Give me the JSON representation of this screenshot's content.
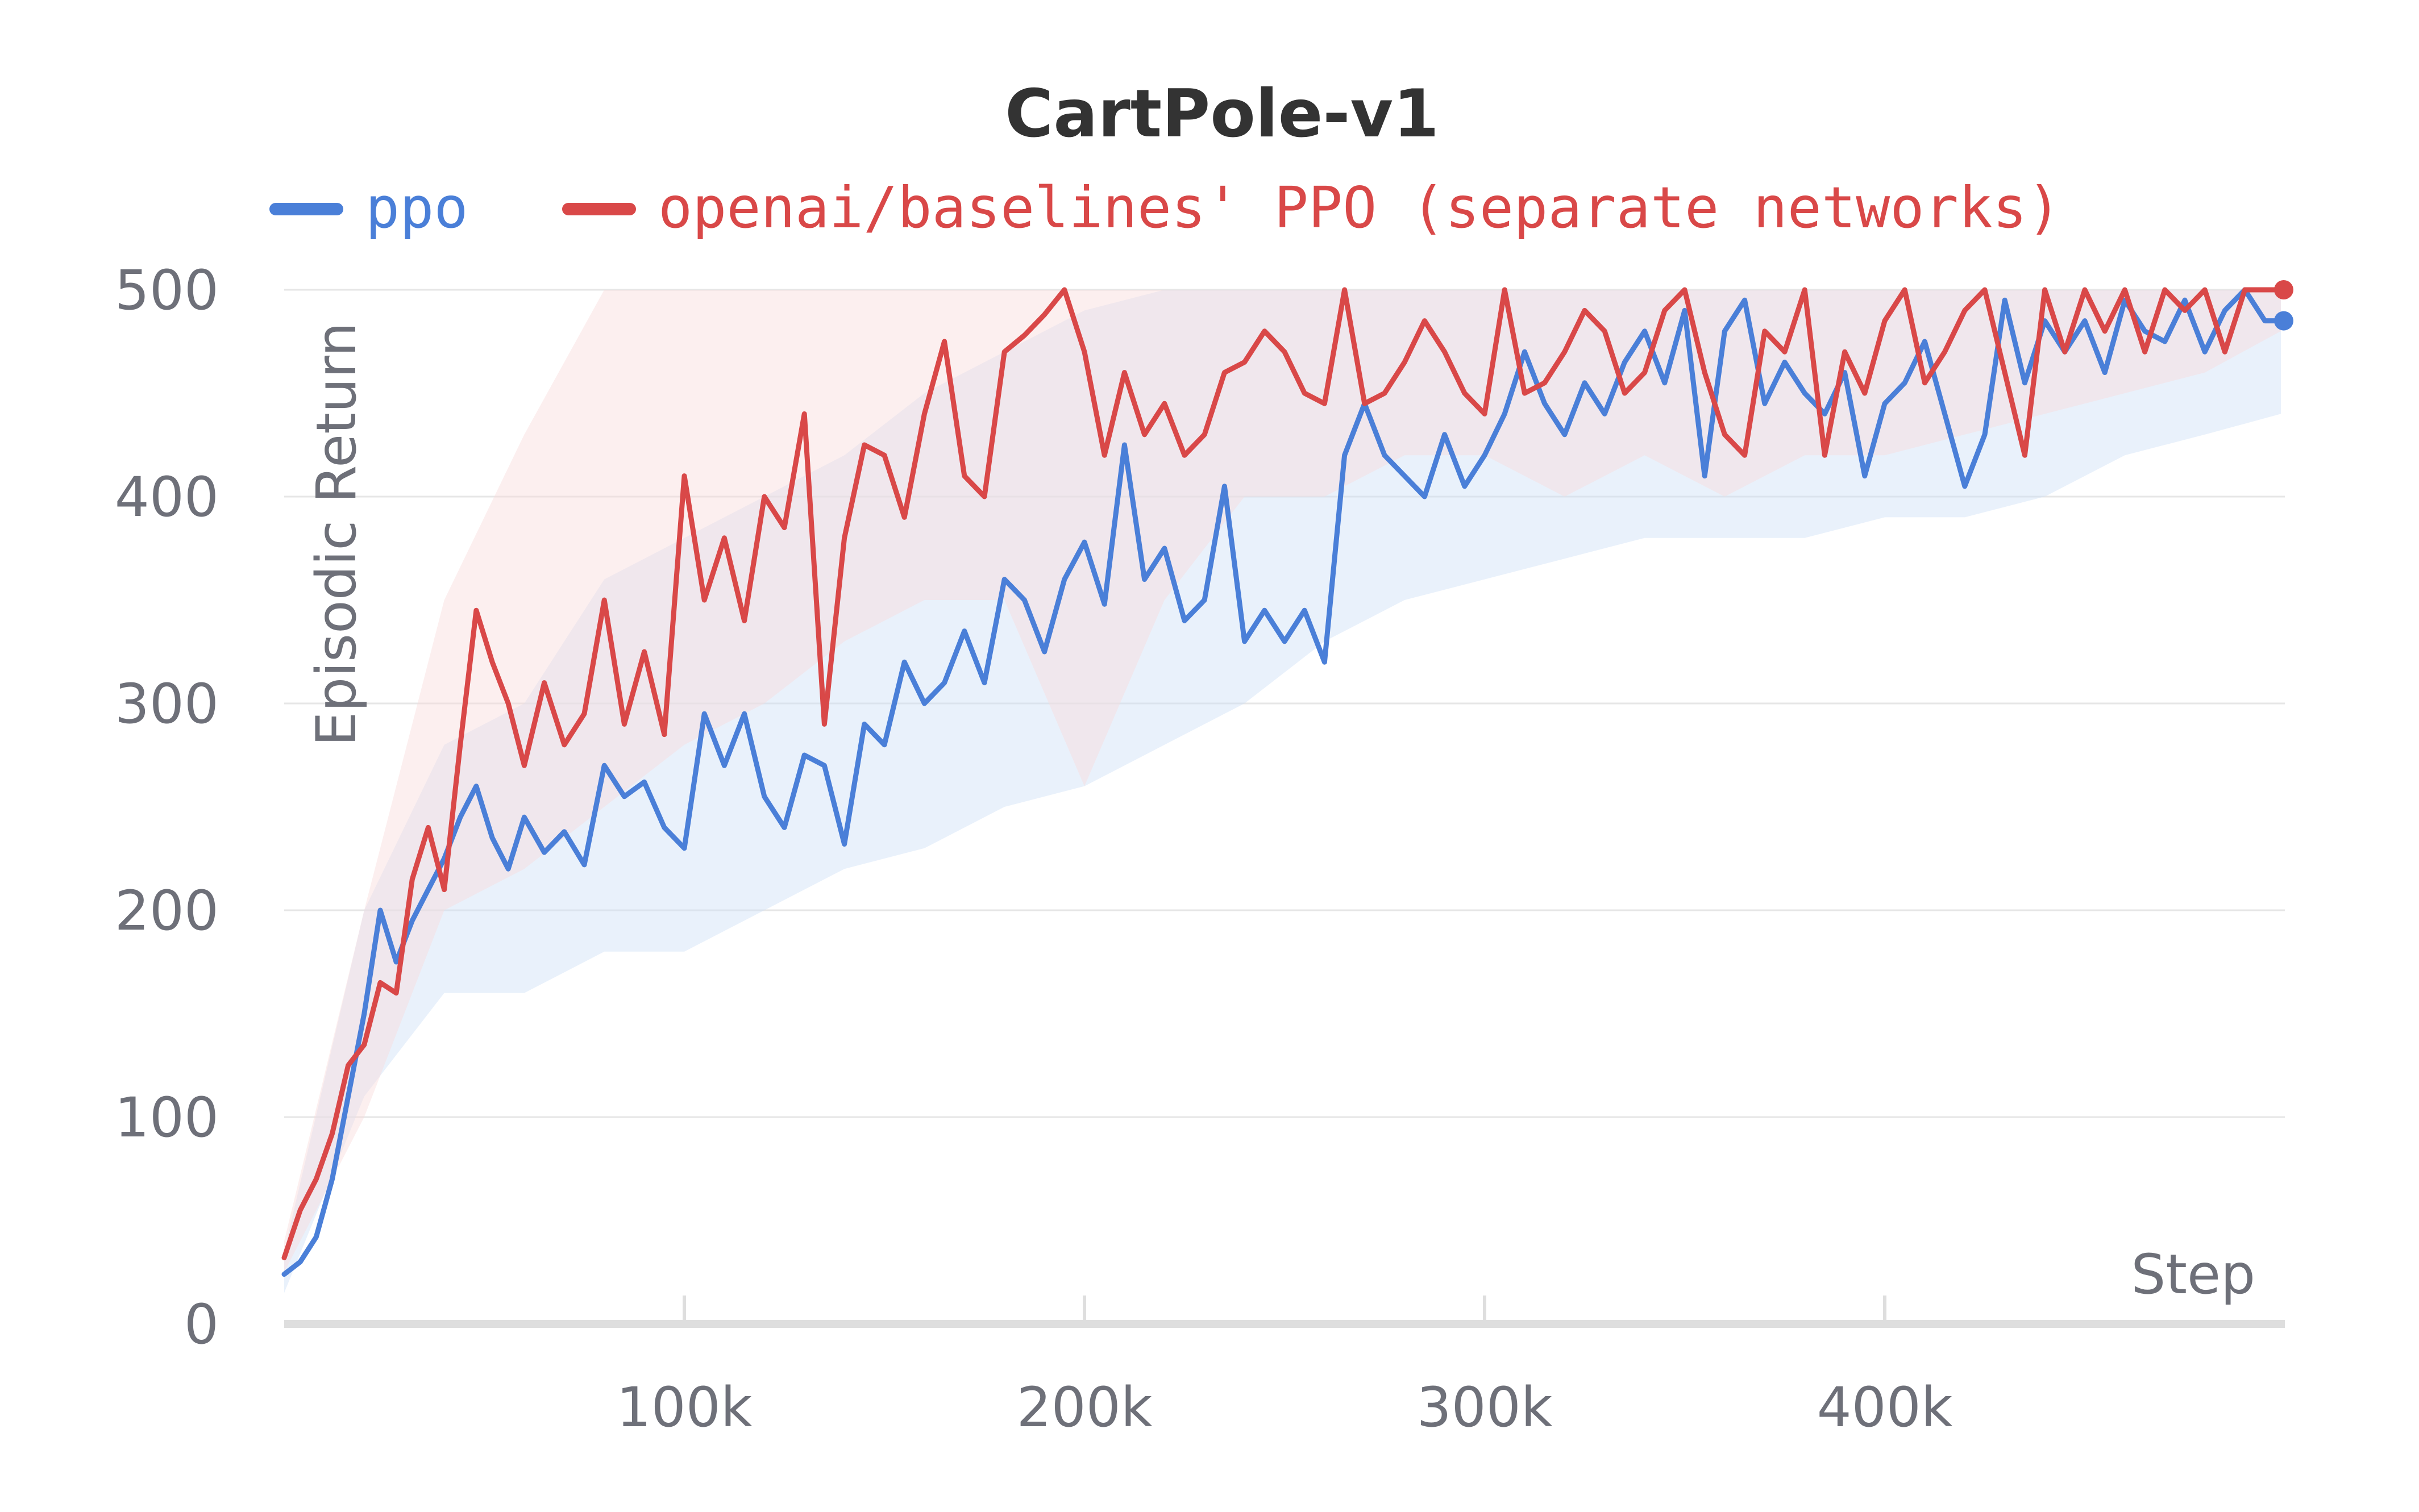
{
  "chart_data": {
    "type": "line",
    "title": "CartPole-v1",
    "xlabel": "Step",
    "ylabel": "Episodic Return",
    "xlim": [
      0,
      500000
    ],
    "ylim": [
      0,
      500
    ],
    "x_ticks": [
      100000,
      200000,
      300000,
      400000
    ],
    "x_tick_labels": [
      "100k",
      "200k",
      "300k",
      "400k"
    ],
    "y_ticks": [
      0,
      100,
      200,
      300,
      400,
      500
    ],
    "y_tick_labels": [
      "0",
      "100",
      "200",
      "300",
      "400",
      "500"
    ],
    "grid": true,
    "legend_position": "top",
    "series": [
      {
        "name": "ppo",
        "color": "#4a7fd8",
        "band_color": "#cfe0f7",
        "points": [
          [
            0,
            24
          ],
          [
            4000,
            30
          ],
          [
            8000,
            42
          ],
          [
            12000,
            70
          ],
          [
            16000,
            110
          ],
          [
            20000,
            150
          ],
          [
            24000,
            200
          ],
          [
            28000,
            175
          ],
          [
            32000,
            195
          ],
          [
            36000,
            210
          ],
          [
            40000,
            225
          ],
          [
            44000,
            245
          ],
          [
            48000,
            260
          ],
          [
            52000,
            235
          ],
          [
            56000,
            220
          ],
          [
            60000,
            245
          ],
          [
            65000,
            228
          ],
          [
            70000,
            238
          ],
          [
            75000,
            222
          ],
          [
            80000,
            270
          ],
          [
            85000,
            255
          ],
          [
            90000,
            262
          ],
          [
            95000,
            240
          ],
          [
            100000,
            230
          ],
          [
            105000,
            295
          ],
          [
            110000,
            270
          ],
          [
            115000,
            295
          ],
          [
            120000,
            255
          ],
          [
            125000,
            240
          ],
          [
            130000,
            275
          ],
          [
            135000,
            270
          ],
          [
            140000,
            232
          ],
          [
            145000,
            290
          ],
          [
            150000,
            280
          ],
          [
            155000,
            320
          ],
          [
            160000,
            300
          ],
          [
            165000,
            310
          ],
          [
            170000,
            335
          ],
          [
            175000,
            310
          ],
          [
            180000,
            360
          ],
          [
            185000,
            350
          ],
          [
            190000,
            325
          ],
          [
            195000,
            360
          ],
          [
            200000,
            378
          ],
          [
            205000,
            348
          ],
          [
            210000,
            425
          ],
          [
            215000,
            360
          ],
          [
            220000,
            375
          ],
          [
            225000,
            340
          ],
          [
            230000,
            350
          ],
          [
            235000,
            405
          ],
          [
            240000,
            330
          ],
          [
            245000,
            345
          ],
          [
            250000,
            330
          ],
          [
            255000,
            345
          ],
          [
            260000,
            320
          ],
          [
            265000,
            420
          ],
          [
            270000,
            445
          ],
          [
            275000,
            420
          ],
          [
            280000,
            410
          ],
          [
            285000,
            400
          ],
          [
            290000,
            430
          ],
          [
            295000,
            405
          ],
          [
            300000,
            420
          ],
          [
            305000,
            440
          ],
          [
            310000,
            470
          ],
          [
            315000,
            445
          ],
          [
            320000,
            430
          ],
          [
            325000,
            455
          ],
          [
            330000,
            440
          ],
          [
            335000,
            465
          ],
          [
            340000,
            480
          ],
          [
            345000,
            455
          ],
          [
            350000,
            490
          ],
          [
            355000,
            410
          ],
          [
            360000,
            480
          ],
          [
            365000,
            495
          ],
          [
            370000,
            445
          ],
          [
            375000,
            465
          ],
          [
            380000,
            450
          ],
          [
            385000,
            440
          ],
          [
            390000,
            460
          ],
          [
            395000,
            410
          ],
          [
            400000,
            445
          ],
          [
            405000,
            455
          ],
          [
            410000,
            475
          ],
          [
            415000,
            440
          ],
          [
            420000,
            405
          ],
          [
            425000,
            430
          ],
          [
            430000,
            495
          ],
          [
            435000,
            455
          ],
          [
            440000,
            485
          ],
          [
            445000,
            470
          ],
          [
            450000,
            485
          ],
          [
            455000,
            460
          ],
          [
            460000,
            495
          ],
          [
            465000,
            480
          ],
          [
            470000,
            475
          ],
          [
            475000,
            495
          ],
          [
            480000,
            470
          ],
          [
            485000,
            490
          ],
          [
            490000,
            500
          ],
          [
            495000,
            485
          ],
          [
            499000,
            485
          ]
        ],
        "band": [
          [
            0,
            15,
            35
          ],
          [
            20000,
            110,
            200
          ],
          [
            40000,
            160,
            280
          ],
          [
            60000,
            160,
            300
          ],
          [
            80000,
            180,
            360
          ],
          [
            100000,
            180,
            380
          ],
          [
            120000,
            200,
            400
          ],
          [
            140000,
            220,
            420
          ],
          [
            160000,
            230,
            450
          ],
          [
            180000,
            250,
            470
          ],
          [
            200000,
            260,
            490
          ],
          [
            220000,
            280,
            500
          ],
          [
            240000,
            300,
            500
          ],
          [
            260000,
            330,
            500
          ],
          [
            280000,
            350,
            500
          ],
          [
            300000,
            360,
            500
          ],
          [
            320000,
            370,
            500
          ],
          [
            340000,
            380,
            500
          ],
          [
            360000,
            380,
            500
          ],
          [
            380000,
            380,
            500
          ],
          [
            400000,
            390,
            500
          ],
          [
            420000,
            390,
            500
          ],
          [
            440000,
            400,
            500
          ],
          [
            460000,
            420,
            500
          ],
          [
            480000,
            430,
            500
          ],
          [
            499000,
            440,
            500
          ]
        ]
      },
      {
        "name": "openai/baselines' PPO (separate networks)",
        "color": "#d94848",
        "band_color": "#f8dcdc",
        "points": [
          [
            0,
            32
          ],
          [
            4000,
            55
          ],
          [
            8000,
            70
          ],
          [
            12000,
            92
          ],
          [
            16000,
            125
          ],
          [
            20000,
            135
          ],
          [
            24000,
            165
          ],
          [
            28000,
            160
          ],
          [
            32000,
            215
          ],
          [
            36000,
            240
          ],
          [
            40000,
            210
          ],
          [
            44000,
            280
          ],
          [
            48000,
            345
          ],
          [
            52000,
            320
          ],
          [
            56000,
            300
          ],
          [
            60000,
            270
          ],
          [
            65000,
            310
          ],
          [
            70000,
            280
          ],
          [
            75000,
            295
          ],
          [
            80000,
            350
          ],
          [
            85000,
            290
          ],
          [
            90000,
            325
          ],
          [
            95000,
            285
          ],
          [
            100000,
            410
          ],
          [
            105000,
            350
          ],
          [
            110000,
            380
          ],
          [
            115000,
            340
          ],
          [
            120000,
            400
          ],
          [
            125000,
            385
          ],
          [
            130000,
            440
          ],
          [
            135000,
            290
          ],
          [
            140000,
            380
          ],
          [
            145000,
            425
          ],
          [
            150000,
            420
          ],
          [
            155000,
            390
          ],
          [
            160000,
            440
          ],
          [
            165000,
            475
          ],
          [
            170000,
            410
          ],
          [
            175000,
            400
          ],
          [
            180000,
            470
          ],
          [
            185000,
            478
          ],
          [
            190000,
            488
          ],
          [
            195000,
            500
          ],
          [
            200000,
            470
          ],
          [
            205000,
            420
          ],
          [
            210000,
            460
          ],
          [
            215000,
            430
          ],
          [
            220000,
            445
          ],
          [
            225000,
            420
          ],
          [
            230000,
            430
          ],
          [
            235000,
            460
          ],
          [
            240000,
            465
          ],
          [
            245000,
            480
          ],
          [
            250000,
            470
          ],
          [
            255000,
            450
          ],
          [
            260000,
            445
          ],
          [
            265000,
            500
          ],
          [
            270000,
            445
          ],
          [
            275000,
            450
          ],
          [
            280000,
            465
          ],
          [
            285000,
            485
          ],
          [
            290000,
            470
          ],
          [
            295000,
            450
          ],
          [
            300000,
            440
          ],
          [
            305000,
            500
          ],
          [
            310000,
            450
          ],
          [
            315000,
            455
          ],
          [
            320000,
            470
          ],
          [
            325000,
            490
          ],
          [
            330000,
            480
          ],
          [
            335000,
            450
          ],
          [
            340000,
            460
          ],
          [
            345000,
            490
          ],
          [
            350000,
            500
          ],
          [
            355000,
            460
          ],
          [
            360000,
            430
          ],
          [
            365000,
            420
          ],
          [
            370000,
            480
          ],
          [
            375000,
            470
          ],
          [
            380000,
            500
          ],
          [
            385000,
            420
          ],
          [
            390000,
            470
          ],
          [
            395000,
            450
          ],
          [
            400000,
            485
          ],
          [
            405000,
            500
          ],
          [
            410000,
            455
          ],
          [
            415000,
            470
          ],
          [
            420000,
            490
          ],
          [
            425000,
            500
          ],
          [
            430000,
            460
          ],
          [
            435000,
            420
          ],
          [
            440000,
            500
          ],
          [
            445000,
            470
          ],
          [
            450000,
            500
          ],
          [
            455000,
            480
          ],
          [
            460000,
            500
          ],
          [
            465000,
            470
          ],
          [
            470000,
            500
          ],
          [
            475000,
            490
          ],
          [
            480000,
            500
          ],
          [
            485000,
            470
          ],
          [
            490000,
            500
          ],
          [
            495000,
            500
          ],
          [
            499000,
            500
          ]
        ],
        "band": [
          [
            0,
            25,
            40
          ],
          [
            20000,
            100,
            200
          ],
          [
            40000,
            200,
            350
          ],
          [
            60000,
            220,
            430
          ],
          [
            80000,
            250,
            500
          ],
          [
            100000,
            280,
            500
          ],
          [
            120000,
            300,
            500
          ],
          [
            140000,
            330,
            500
          ],
          [
            160000,
            350,
            500
          ],
          [
            180000,
            350,
            500
          ],
          [
            200000,
            260,
            500
          ],
          [
            220000,
            350,
            500
          ],
          [
            240000,
            400,
            500
          ],
          [
            260000,
            400,
            500
          ],
          [
            280000,
            420,
            500
          ],
          [
            300000,
            420,
            500
          ],
          [
            320000,
            400,
            500
          ],
          [
            340000,
            420,
            500
          ],
          [
            360000,
            400,
            500
          ],
          [
            380000,
            420,
            500
          ],
          [
            400000,
            420,
            500
          ],
          [
            420000,
            430,
            500
          ],
          [
            440000,
            440,
            500
          ],
          [
            460000,
            450,
            500
          ],
          [
            480000,
            460,
            500
          ],
          [
            499000,
            480,
            500
          ]
        ]
      }
    ]
  }
}
